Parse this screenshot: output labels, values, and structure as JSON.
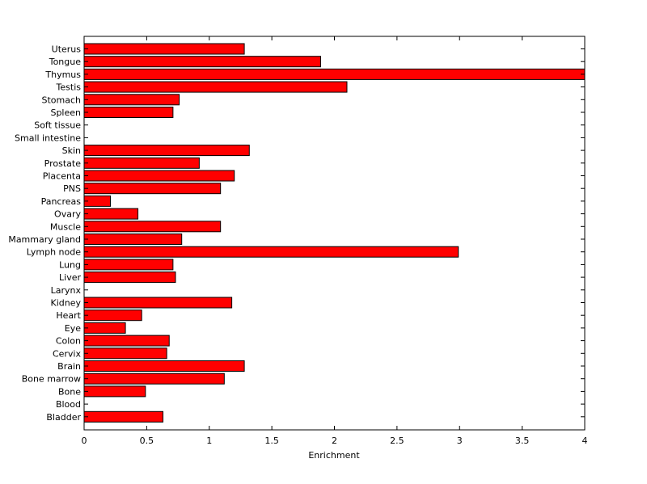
{
  "chart_data": {
    "type": "bar",
    "orientation": "horizontal",
    "title": "",
    "xlabel": "Enrichment",
    "ylabel": "",
    "xlim": [
      0,
      4
    ],
    "xticks": [
      "0",
      "0.5",
      "1",
      "1.5",
      "2",
      "2.5",
      "3",
      "3.5",
      "4"
    ],
    "grid": false,
    "legend": "none",
    "bar_color": "#ff0000",
    "edge_color": "#000000",
    "categories": [
      "Uterus",
      "Tongue",
      "Thymus",
      "Testis",
      "Stomach",
      "Spleen",
      "Soft tissue",
      "Small intestine",
      "Skin",
      "Prostate",
      "Placenta",
      "PNS",
      "Pancreas",
      "Ovary",
      "Muscle",
      "Mammary gland",
      "Lymph node",
      "Lung",
      "Liver",
      "Larynx",
      "Kidney",
      "Heart",
      "Eye",
      "Colon",
      "Cervix",
      "Brain",
      "Bone marrow",
      "Bone",
      "Blood",
      "Bladder"
    ],
    "values": [
      1.28,
      1.89,
      4.0,
      2.1,
      0.76,
      0.71,
      0,
      0,
      1.32,
      0.92,
      1.2,
      1.09,
      0.21,
      0.43,
      1.09,
      0.78,
      2.99,
      0.71,
      0.73,
      0,
      1.18,
      0.46,
      0.33,
      0.68,
      0.66,
      1.28,
      1.12,
      0.49,
      0,
      0.63
    ]
  }
}
